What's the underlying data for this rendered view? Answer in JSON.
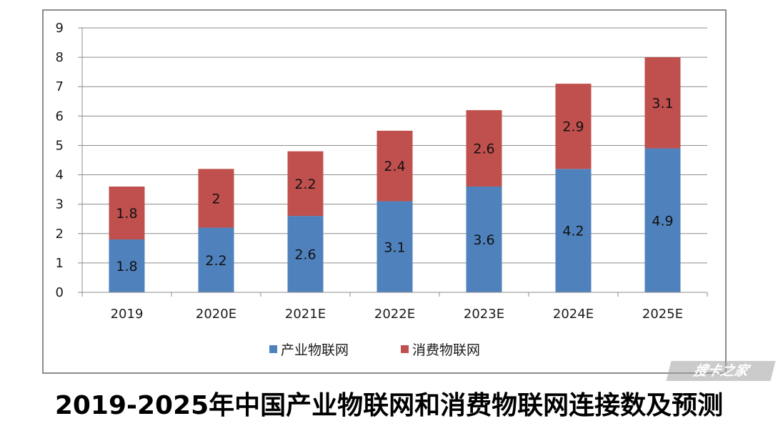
{
  "caption": "2019-2025年中国产业物联网和消费物联网连接数及预测",
  "watermark": "搜卡之家",
  "chart_data": {
    "type": "bar",
    "stacked": true,
    "categories": [
      "2019",
      "2020E",
      "2021E",
      "2022E",
      "2023E",
      "2024E",
      "2025E"
    ],
    "series": [
      {
        "name": "产业物联网",
        "color": "#4f81bd",
        "values": [
          1.8,
          2.2,
          2.6,
          3.1,
          3.6,
          4.2,
          4.9
        ],
        "labels": [
          "1.8",
          "2.2",
          "2.6",
          "3.1",
          "3.6",
          "4.2",
          "4.9"
        ]
      },
      {
        "name": "消费物联网",
        "color": "#c0504d",
        "values": [
          1.8,
          2,
          2.2,
          2.4,
          2.6,
          2.9,
          3.1
        ],
        "labels": [
          "1.8",
          "2",
          "2.2",
          "2.4",
          "2.6",
          "2.9",
          "3.1"
        ]
      }
    ],
    "ylim": [
      0,
      9
    ],
    "yticks": [
      "0",
      "1",
      "2",
      "3",
      "4",
      "5",
      "6",
      "7",
      "8",
      "9"
    ],
    "grid": true,
    "legend": "bottom"
  }
}
